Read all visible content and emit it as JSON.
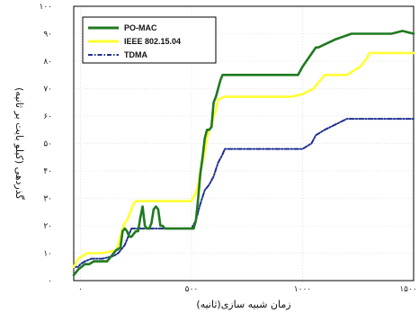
{
  "chart_data": {
    "type": "line",
    "title": "",
    "xlabel": "زمان شبیه سازی(ثانیه)",
    "ylabel": "گذردهی (کیلو بایت بر ثانیه)",
    "xlim": [
      -30,
      1500
    ],
    "ylim": [
      0,
      100
    ],
    "xticks": [
      0,
      500,
      1000,
      1500
    ],
    "xtick_labels": [
      "۰",
      "۵۰۰",
      "۱۰۰۰",
      "۱۵۰۰"
    ],
    "yticks": [
      0,
      10,
      20,
      30,
      40,
      50,
      60,
      70,
      80,
      90,
      100
    ],
    "ytick_labels": [
      "۰",
      "۱۰",
      "۲۰",
      "۳۰",
      "۴۰",
      "۵۰",
      "۶۰",
      "۷۰",
      "۸۰",
      "۹۰",
      "۱۰۰"
    ],
    "grid": true,
    "legend_position": "top-left",
    "series": [
      {
        "name": "PO-MAC",
        "color": "#1f7a1f",
        "style": "solid",
        "x": [
          -30,
          -10,
          20,
          40,
          60,
          80,
          120,
          140,
          160,
          180,
          190,
          200,
          210,
          215,
          220,
          230,
          240,
          250,
          260,
          270,
          280,
          290,
          300,
          310,
          320,
          330,
          340,
          350,
          360,
          370,
          380,
          390,
          400,
          410,
          420,
          430,
          440,
          450,
          460,
          470,
          480,
          490,
          500,
          510,
          520,
          530,
          540,
          550,
          560,
          570,
          580,
          590,
          600,
          610,
          620,
          630,
          640,
          650,
          700,
          800,
          900,
          930,
          960,
          980,
          1000,
          1060,
          1070,
          1150,
          1220,
          1270,
          1300,
          1350,
          1400,
          1450,
          1500
        ],
        "y": [
          2,
          4,
          6,
          6,
          7,
          7,
          7,
          9,
          11,
          12,
          18,
          19,
          18,
          17,
          16,
          16,
          17,
          18,
          18,
          23,
          27,
          20,
          19,
          19,
          21,
          26,
          27,
          26,
          20,
          20,
          19,
          19,
          19,
          19,
          19,
          19,
          19,
          19,
          19,
          19,
          19,
          19,
          19,
          19,
          22,
          30,
          39,
          45,
          52,
          55,
          55,
          56,
          65,
          67,
          70,
          73,
          75,
          75,
          75,
          75,
          75,
          75,
          75,
          75,
          78,
          85,
          85,
          88,
          90,
          90,
          90,
          90,
          90,
          91,
          90
        ]
      },
      {
        "name": "IEEE 802.15.04",
        "color": "#ffff33",
        "style": "solid",
        "x": [
          -30,
          -10,
          30,
          100,
          160,
          170,
          180,
          190,
          200,
          210,
          220,
          230,
          240,
          250,
          500,
          520,
          530,
          540,
          550,
          560,
          570,
          580,
          590,
          600,
          610,
          620,
          650,
          700,
          800,
          900,
          950,
          1000,
          1050,
          1090,
          1100,
          1200,
          1260,
          1290,
          1300,
          1500
        ],
        "y": [
          5,
          8,
          10,
          10,
          11,
          13,
          16,
          19,
          21,
          22,
          24,
          26,
          28,
          29,
          29,
          32,
          35,
          40,
          43,
          47,
          52,
          55,
          56,
          60,
          62,
          66,
          67,
          67,
          67,
          67,
          67,
          68,
          70,
          74,
          75,
          75,
          78,
          81,
          83,
          83
        ]
      },
      {
        "name": "TDMA",
        "color": "#1f2f8f",
        "style": "dash-dot",
        "x": [
          -30,
          -10,
          0,
          20,
          50,
          100,
          150,
          170,
          190,
          200,
          230,
          500,
          520,
          540,
          560,
          580,
          600,
          620,
          640,
          650,
          700,
          800,
          900,
          1000,
          1040,
          1060,
          1100,
          1150,
          1200,
          1300,
          1400,
          1500
        ],
        "y": [
          5,
          5,
          6,
          7,
          8,
          8,
          9,
          10,
          12,
          13,
          19,
          19,
          22,
          28,
          33,
          35,
          38,
          43,
          46,
          48,
          48,
          48,
          48,
          48,
          50,
          53,
          55,
          57,
          59,
          59,
          59,
          59
        ]
      }
    ]
  }
}
